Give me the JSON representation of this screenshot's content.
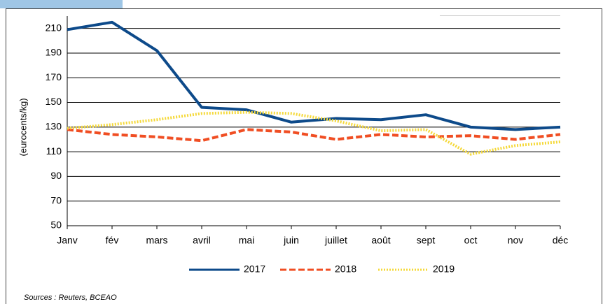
{
  "chart_data": {
    "type": "line",
    "y_label": "(eurocents/kg)",
    "source": "Sources : Reuters, BCEAO",
    "categories": [
      "Janv",
      "fév",
      "mars",
      "avril",
      "mai",
      "juin",
      "juillet",
      "août",
      "sept",
      "oct",
      "nov",
      "déc"
    ],
    "series": [
      {
        "name": "2017",
        "color": "#0d4a8a",
        "dash": "solid",
        "values": [
          209,
          215,
          192,
          146,
          144,
          134,
          137,
          136,
          140,
          130,
          128,
          130
        ]
      },
      {
        "name": "2018",
        "color": "#f04e23",
        "dash": "dashed",
        "values": [
          128,
          124,
          122,
          119,
          128,
          126,
          120,
          124,
          122,
          123,
          120,
          124
        ]
      },
      {
        "name": "2019",
        "color": "#f5d93a",
        "dash": "dotted",
        "values": [
          129,
          132,
          136,
          141,
          142,
          141,
          135,
          127,
          128,
          108,
          115,
          118
        ]
      }
    ],
    "ylim": [
      50,
      220
    ],
    "yticks": [
      50,
      70,
      90,
      110,
      130,
      150,
      170,
      190,
      210
    ],
    "grid": true,
    "legend": "bottom"
  }
}
